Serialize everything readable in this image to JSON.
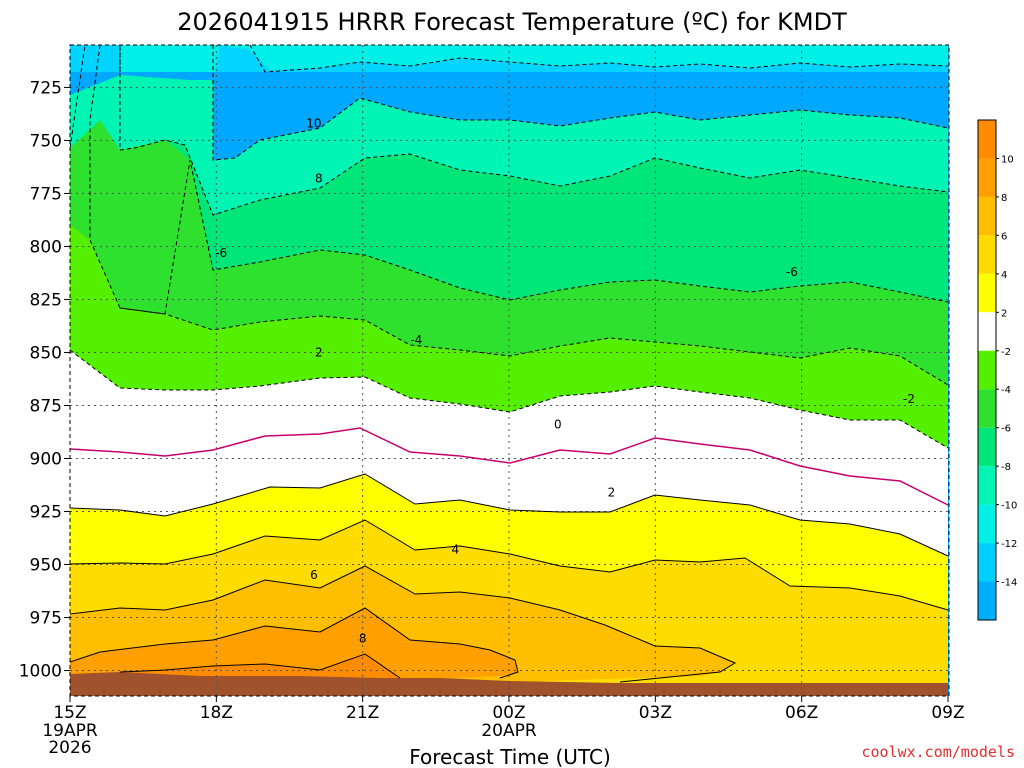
{
  "chart_data": {
    "type": "contour",
    "title": "2026041915 HRRR Forecast Temperature (ºC) for KMDT",
    "xlabel": "Forecast Time (UTC)",
    "ylabel": "",
    "x_ticks": [
      {
        "label": "15Z",
        "sub": [
          "19APR",
          "2026"
        ],
        "hour": 0
      },
      {
        "label": "18Z",
        "sub": [],
        "hour": 3
      },
      {
        "label": "21Z",
        "sub": [],
        "hour": 6
      },
      {
        "label": "00Z",
        "sub": [
          "20APR"
        ],
        "hour": 9
      },
      {
        "label": "03Z",
        "sub": [],
        "hour": 12
      },
      {
        "label": "06Z",
        "sub": [],
        "hour": 15
      },
      {
        "label": "09Z",
        "sub": [],
        "hour": 18
      }
    ],
    "x_range_hours": [
      0,
      18
    ],
    "y_ticks": [
      725,
      750,
      775,
      800,
      825,
      850,
      875,
      900,
      925,
      950,
      975,
      1000
    ],
    "y_unit": "hPa",
    "y_range": [
      705,
      1012
    ],
    "colorbar": {
      "labels": [
        "10",
        "8",
        "6",
        "4",
        "2",
        "-2",
        "-4",
        "-6",
        "-8",
        "-10",
        "-12",
        "-14"
      ],
      "colors": [
        "#ff8c00",
        "#ffa000",
        "#ffbe00",
        "#ffdc00",
        "#ffff00",
        "#ffffff",
        "#55f000",
        "#2ee12e",
        "#00e678",
        "#00f5b4",
        "#00f0e8",
        "#00d0ff",
        "#00afff"
      ]
    },
    "contour_labels": [
      {
        "text": "10",
        "hour": 5.0,
        "p": 742
      },
      {
        "text": "8",
        "hour": 5.1,
        "p": 768
      },
      {
        "text": "-6",
        "hour": 3.1,
        "p": 803
      },
      {
        "text": "-6",
        "hour": 14.8,
        "p": 812
      },
      {
        "text": "-4",
        "hour": 7.1,
        "p": 844
      },
      {
        "text": "2",
        "hour": 5.1,
        "p": 850
      },
      {
        "text": "-2",
        "hour": 17.2,
        "p": 872
      },
      {
        "text": "0",
        "hour": 10.0,
        "p": 884
      },
      {
        "text": "2",
        "hour": 11.1,
        "p": 916
      },
      {
        "text": "4",
        "hour": 7.9,
        "p": 943
      },
      {
        "text": "6",
        "hour": 5.0,
        "p": 955
      },
      {
        "text": "8",
        "hour": 6.0,
        "p": 985
      }
    ],
    "grid": true
  },
  "credit": "coolwx.com/models"
}
